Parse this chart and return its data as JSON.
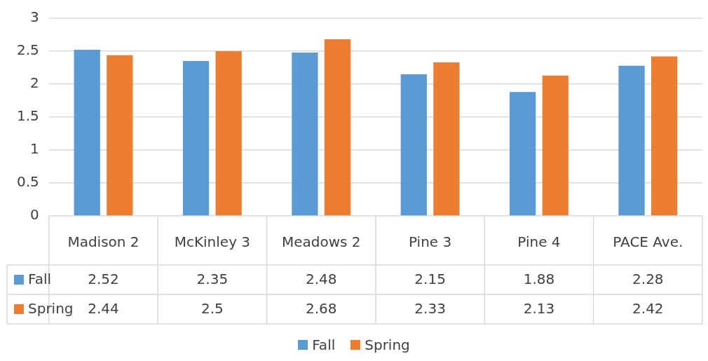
{
  "chart_data": {
    "type": "bar",
    "categories": [
      "Madison 2",
      "McKinley 3",
      "Meadows 2",
      "Pine 3",
      "Pine 4",
      "PACE Ave."
    ],
    "series": [
      {
        "name": "Fall",
        "color": "#5b9bd5",
        "values": [
          2.52,
          2.35,
          2.48,
          2.15,
          1.88,
          2.28
        ]
      },
      {
        "name": "Spring",
        "color": "#ed7d31",
        "values": [
          2.44,
          2.5,
          2.68,
          2.33,
          2.13,
          2.42
        ]
      }
    ],
    "ylim": [
      0,
      3
    ],
    "yticks": [
      0,
      0.5,
      1,
      1.5,
      2,
      2.5,
      3
    ],
    "grid": "y",
    "legend": "bottom",
    "data_labels": true
  }
}
